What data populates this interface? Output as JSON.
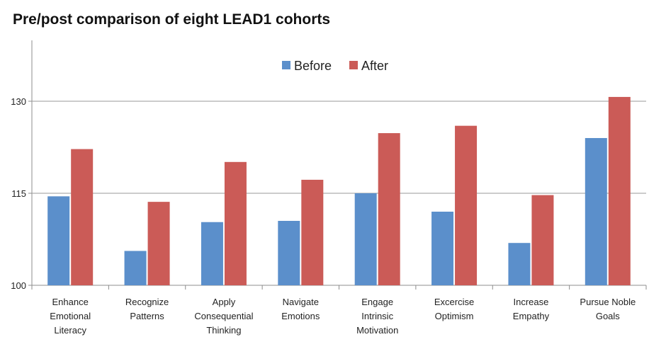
{
  "chart_data": {
    "type": "bar",
    "title": "Pre/post comparison of eight LEAD1 cohorts",
    "categories": [
      [
        "Enhance",
        "Emotional",
        "Literacy"
      ],
      [
        "Recognize",
        "Patterns"
      ],
      [
        "Apply",
        "Consequential",
        "Thinking"
      ],
      [
        "Navigate",
        "Emotions"
      ],
      [
        "Engage",
        "Intrinsic",
        "Motivation"
      ],
      [
        "Excercise",
        "Optimism"
      ],
      [
        "Increase",
        "Empathy"
      ],
      [
        "Pursue Noble",
        "Goals"
      ]
    ],
    "series": [
      {
        "name": "Before",
        "color": "#5B8FCB",
        "values": [
          114.5,
          105.6,
          110.3,
          110.5,
          115.0,
          112.0,
          106.9,
          124.0
        ]
      },
      {
        "name": "After",
        "color": "#CB5B57",
        "values": [
          122.2,
          113.6,
          120.1,
          117.2,
          124.8,
          126.0,
          114.7,
          130.7
        ]
      }
    ],
    "ylim": [
      100,
      140
    ],
    "yticks": [
      100,
      115,
      130
    ],
    "grid": true,
    "legend_position": "top-center"
  }
}
